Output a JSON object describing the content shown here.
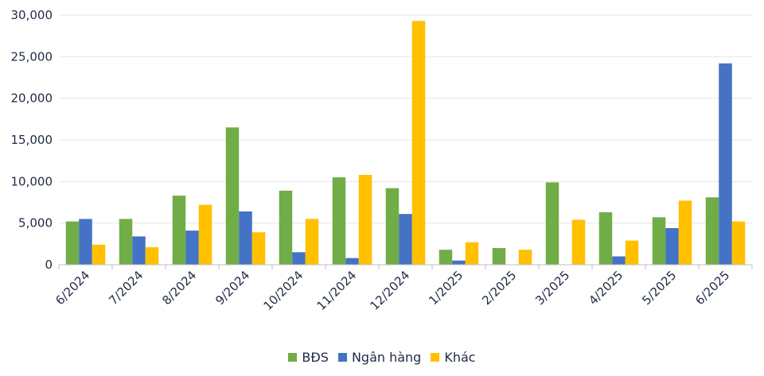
{
  "chart_data": {
    "type": "bar",
    "categories": [
      "6/2024",
      "7/2024",
      "8/2024",
      "9/2024",
      "10/2024",
      "11/2024",
      "12/2024",
      "1/2025",
      "2/2025",
      "3/2025",
      "4/2025",
      "5/2025",
      "6/2025"
    ],
    "series": [
      {
        "name": "BĐS",
        "color": "#70ad47",
        "values": [
          5200,
          5500,
          8300,
          16500,
          8900,
          10500,
          9200,
          1800,
          2000,
          9900,
          6300,
          5700,
          8100
        ]
      },
      {
        "name": "Ngân hàng",
        "color": "#4472c4",
        "values": [
          5500,
          3400,
          4100,
          6400,
          1500,
          800,
          6100,
          500,
          0,
          0,
          1000,
          4400,
          24200
        ]
      },
      {
        "name": "Khác",
        "color": "#ffc000",
        "values": [
          2400,
          2100,
          7200,
          3900,
          5500,
          10800,
          29300,
          2700,
          1800,
          5400,
          2900,
          7700,
          5200
        ]
      }
    ],
    "ylim": [
      0,
      30000
    ],
    "yticks": [
      "0",
      "5,000",
      "10,000",
      "15,000",
      "20,000",
      "25,000",
      "30,000"
    ],
    "ytick_values": [
      0,
      5000,
      10000,
      15000,
      20000,
      25000,
      30000
    ],
    "grid": true,
    "legend_position": "bottom",
    "title": "",
    "xlabel": "",
    "ylabel": ""
  }
}
